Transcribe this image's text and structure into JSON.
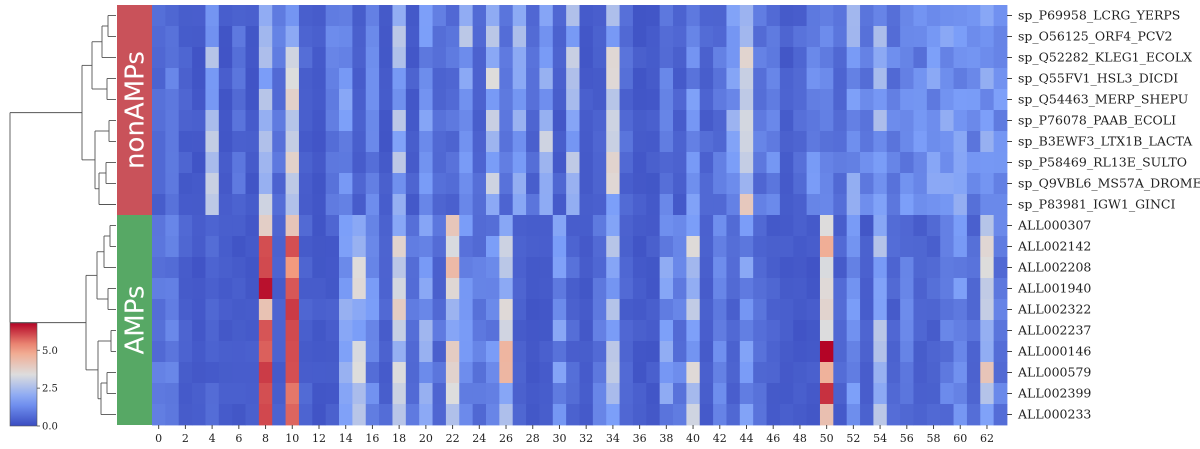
{
  "chart_data": {
    "type": "heatmap",
    "title": "",
    "xlabel": "",
    "ylabel": "",
    "colormap": "coolwarm",
    "value_range": [
      0,
      6.8
    ],
    "colorbar": {
      "ticks": [
        "0.0",
        "2.5",
        "5.0"
      ],
      "tick_values": [
        0,
        2.5,
        5.0
      ],
      "placement": "bottom-left"
    },
    "x_tick_labels": [
      "0",
      "2",
      "4",
      "6",
      "8",
      "10",
      "12",
      "14",
      "16",
      "18",
      "20",
      "22",
      "24",
      "26",
      "28",
      "30",
      "32",
      "34",
      "36",
      "38",
      "40",
      "42",
      "44",
      "46",
      "48",
      "50",
      "52",
      "54",
      "56",
      "58",
      "60",
      "62"
    ],
    "n_columns": 64,
    "groups": [
      {
        "name": "nonAMPs",
        "color": "#c9525a",
        "rows": 10
      },
      {
        "name": "AMPs",
        "color": "#57a865",
        "rows": 10
      }
    ],
    "rows": [
      "sp_P69958_LCRG_YERPS",
      "sp_O56125_ORF4_PCV2",
      "sp_Q52282_KLEG1_ECOLX",
      "sp_Q55FV1_HSL3_DICDI",
      "sp_Q54463_MERP_SHEPU",
      "sp_P76078_PAAB_ECOLI",
      "sp_B3EWF3_LTX1B_LACTA",
      "sp_P58469_RL13E_SULTO",
      "sp_Q9VBL6_MS57A_DROME",
      "sp_P83981_IGW1_GINCI",
      "ALL000307",
      "ALL002142",
      "ALL002208",
      "ALL001940",
      "ALL002322",
      "ALL002237",
      "ALL000146",
      "ALL000579",
      "ALL002399",
      "ALL000233"
    ],
    "column_profiles": {
      "nonAMPs": [
        0.6,
        0.9,
        0.4,
        0.3,
        2.2,
        0.3,
        0.7,
        0.3,
        2.6,
        0.8,
        2.7,
        0.5,
        0.3,
        1.0,
        1.6,
        0.4,
        1.0,
        0.3,
        2.2,
        0.4,
        1.4,
        0.8,
        0.7,
        2.1,
        0.6,
        2.6,
        0.8,
        2.0,
        0.6,
        2.3,
        0.4,
        2.2,
        0.3,
        0.4,
        2.8,
        0.6,
        0.3,
        0.3,
        0.9,
        0.4,
        1.3,
        0.5,
        0.8,
        1.8,
        3.0,
        0.9,
        1.1,
        0.4,
        0.6,
        1.2,
        1.0,
        0.8,
        1.8,
        1.0,
        2.0,
        1.0,
        1.3,
        1.2,
        1.6,
        2.0,
        1.6,
        1.2,
        1.8,
        1.4
      ],
      "AMPs": [
        0.8,
        0.9,
        0.5,
        0.3,
        0.5,
        0.3,
        0.3,
        0.3,
        4.8,
        0.4,
        4.8,
        0.5,
        0.3,
        0.4,
        1.6,
        2.6,
        1.2,
        0.5,
        2.8,
        0.9,
        1.8,
        0.7,
        3.2,
        1.2,
        0.9,
        1.2,
        3.3,
        0.4,
        0.3,
        0.3,
        1.4,
        0.6,
        0.3,
        0.9,
        2.2,
        0.5,
        0.3,
        0.3,
        1.5,
        1.0,
        2.6,
        0.4,
        1.0,
        0.5,
        1.4,
        0.6,
        0.4,
        0.3,
        0.3,
        0.3,
        5.0,
        0.5,
        1.6,
        0.4,
        2.2,
        0.5,
        1.0,
        0.4,
        0.6,
        1.0,
        1.4,
        0.6,
        3.1,
        0.9
      ]
    }
  },
  "dendrogram": {
    "leaves": 20
  }
}
